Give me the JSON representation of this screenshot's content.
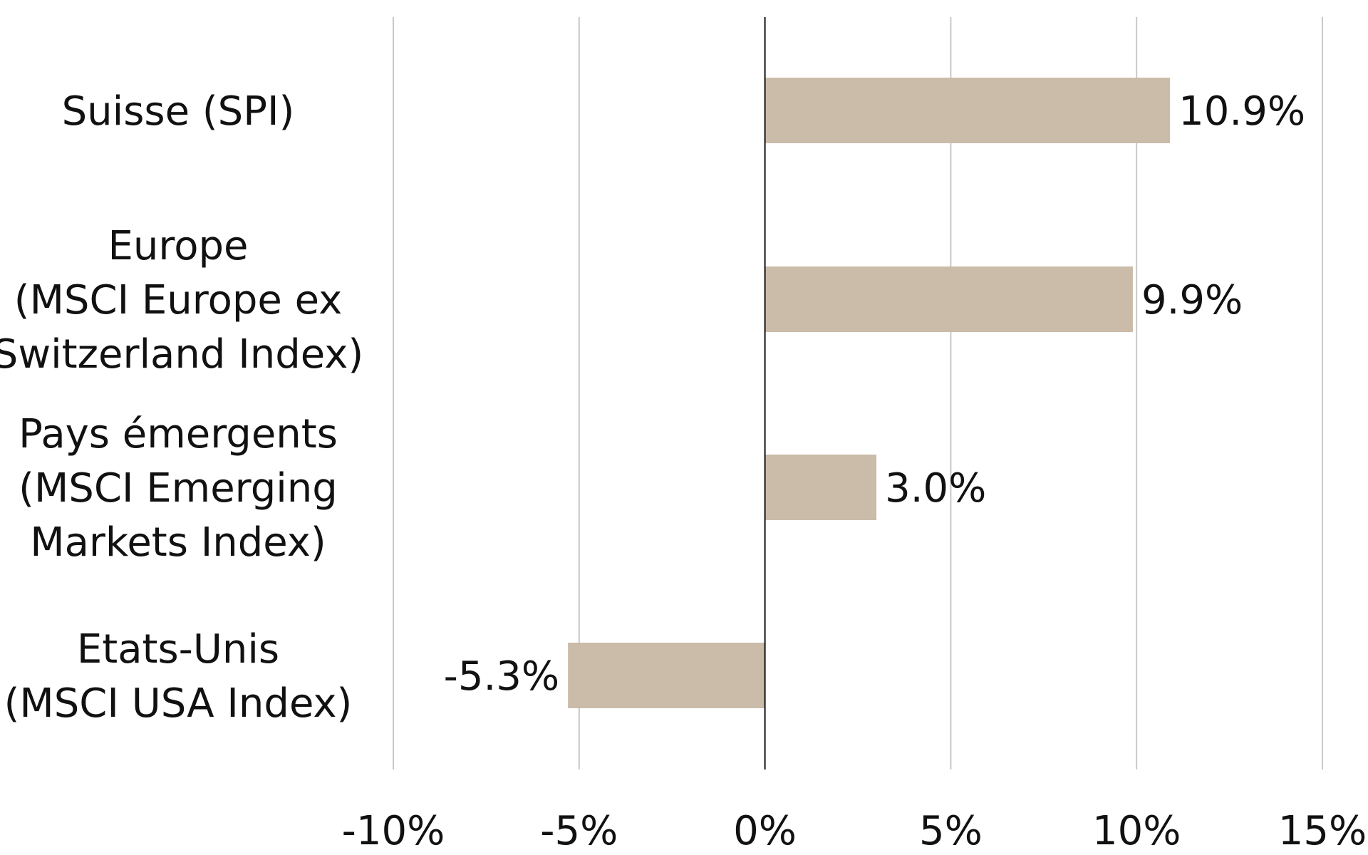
{
  "chart_data": {
    "type": "bar",
    "orientation": "horizontal",
    "categories": [
      [
        "Suisse (SPI)"
      ],
      [
        "Europe",
        "(MSCI Europe ex",
        "Switzerland Index)"
      ],
      [
        "Pays émergents",
        "(MSCI Emerging",
        "Markets Index)"
      ],
      [
        "Etats-Unis",
        "(MSCI USA Index)"
      ]
    ],
    "values": [
      10.9,
      9.9,
      3.0,
      -5.3
    ],
    "value_labels": [
      "10.9%",
      "9.9%",
      "3.0%",
      "-5.3%"
    ],
    "xlim": [
      -10,
      15
    ],
    "xticks": [
      -10,
      -5,
      0,
      5,
      10,
      15
    ],
    "xtick_labels": [
      "-10%",
      "-5%",
      "0%",
      "5%",
      "10%",
      "15%"
    ],
    "grid": "vertical",
    "bar_color": "#cbbba9",
    "title": "",
    "xlabel": "",
    "ylabel": ""
  }
}
